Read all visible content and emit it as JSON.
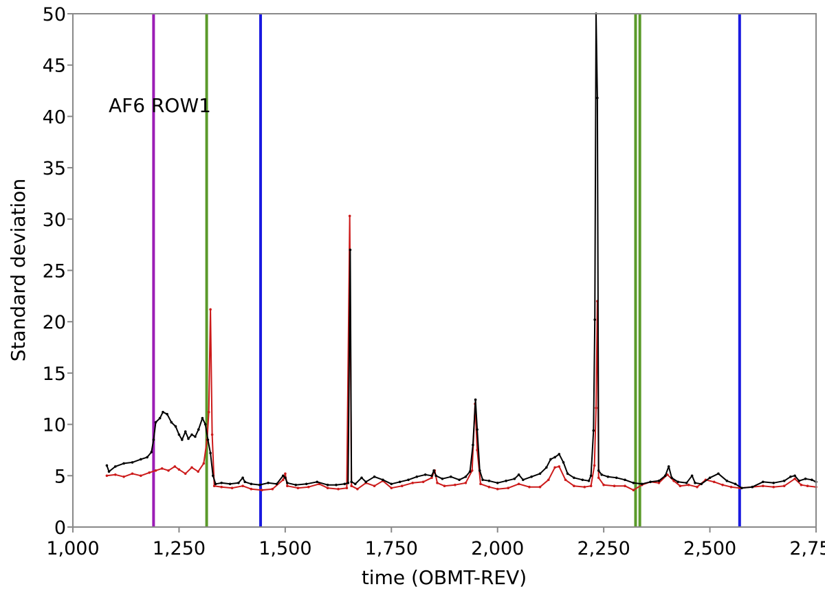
{
  "chart_data": {
    "type": "line",
    "title": "",
    "annotation": "AF6 ROW1",
    "xlabel": "time (OBMT-REV)",
    "ylabel": "Standard deviation",
    "xlim": [
      1000,
      2750
    ],
    "ylim": [
      0,
      50
    ],
    "grid": false,
    "x_ticks": [
      "1,000",
      "1,250",
      "1,500",
      "1,750",
      "2,000",
      "2,250",
      "2,500",
      "2,750"
    ],
    "y_ticks": [
      "0",
      "5",
      "10",
      "15",
      "20",
      "25",
      "30",
      "35",
      "40",
      "45",
      "50"
    ],
    "vertical_markers": [
      {
        "x": 1190,
        "color": "#9b1db5"
      },
      {
        "x": 1315,
        "color": "#5a9a2a"
      },
      {
        "x": 1442,
        "color": "#1a1ae0"
      },
      {
        "x": 2325,
        "color": "#5a9a2a"
      },
      {
        "x": 2335,
        "color": "#5a9a2a"
      },
      {
        "x": 2570,
        "color": "#1a1ae0"
      }
    ],
    "series": [
      {
        "color": "#000000",
        "points": [
          [
            1080,
            6.0
          ],
          [
            1085,
            5.4
          ],
          [
            1100,
            5.9
          ],
          [
            1120,
            6.2
          ],
          [
            1140,
            6.3
          ],
          [
            1160,
            6.6
          ],
          [
            1175,
            6.8
          ],
          [
            1185,
            7.3
          ],
          [
            1190,
            8.5
          ],
          [
            1195,
            10.2
          ],
          [
            1205,
            10.6
          ],
          [
            1212,
            11.2
          ],
          [
            1222,
            11.0
          ],
          [
            1232,
            10.2
          ],
          [
            1242,
            9.8
          ],
          [
            1250,
            9.0
          ],
          [
            1257,
            8.5
          ],
          [
            1265,
            9.3
          ],
          [
            1272,
            8.6
          ],
          [
            1280,
            9.0
          ],
          [
            1288,
            8.8
          ],
          [
            1296,
            9.5
          ],
          [
            1305,
            10.6
          ],
          [
            1312,
            10.0
          ],
          [
            1318,
            8.5
          ],
          [
            1324,
            7.2
          ],
          [
            1330,
            5.0
          ],
          [
            1336,
            4.2
          ],
          [
            1350,
            4.3
          ],
          [
            1370,
            4.2
          ],
          [
            1390,
            4.3
          ],
          [
            1400,
            4.8
          ],
          [
            1405,
            4.4
          ],
          [
            1420,
            4.2
          ],
          [
            1440,
            4.1
          ],
          [
            1460,
            4.3
          ],
          [
            1480,
            4.2
          ],
          [
            1495,
            5.0
          ],
          [
            1500,
            4.8
          ],
          [
            1505,
            4.3
          ],
          [
            1525,
            4.1
          ],
          [
            1550,
            4.2
          ],
          [
            1575,
            4.4
          ],
          [
            1600,
            4.1
          ],
          [
            1620,
            4.1
          ],
          [
            1640,
            4.2
          ],
          [
            1648,
            4.3
          ],
          [
            1653,
            27.0
          ],
          [
            1656,
            4.4
          ],
          [
            1665,
            4.2
          ],
          [
            1680,
            4.8
          ],
          [
            1690,
            4.4
          ],
          [
            1710,
            4.9
          ],
          [
            1730,
            4.6
          ],
          [
            1750,
            4.2
          ],
          [
            1770,
            4.4
          ],
          [
            1790,
            4.6
          ],
          [
            1810,
            4.9
          ],
          [
            1830,
            5.1
          ],
          [
            1845,
            5.0
          ],
          [
            1850,
            5.5
          ],
          [
            1855,
            5.0
          ],
          [
            1870,
            4.7
          ],
          [
            1890,
            4.9
          ],
          [
            1910,
            4.6
          ],
          [
            1925,
            4.9
          ],
          [
            1935,
            5.4
          ],
          [
            1942,
            8.0
          ],
          [
            1948,
            12.4
          ],
          [
            1952,
            9.5
          ],
          [
            1958,
            5.5
          ],
          [
            1965,
            4.6
          ],
          [
            1980,
            4.5
          ],
          [
            2000,
            4.3
          ],
          [
            2020,
            4.5
          ],
          [
            2040,
            4.7
          ],
          [
            2050,
            5.1
          ],
          [
            2060,
            4.6
          ],
          [
            2080,
            4.9
          ],
          [
            2100,
            5.2
          ],
          [
            2115,
            5.8
          ],
          [
            2125,
            6.6
          ],
          [
            2135,
            6.8
          ],
          [
            2145,
            7.1
          ],
          [
            2155,
            6.3
          ],
          [
            2165,
            5.2
          ],
          [
            2180,
            4.8
          ],
          [
            2200,
            4.6
          ],
          [
            2215,
            4.5
          ],
          [
            2220,
            5.0
          ],
          [
            2226,
            9.4
          ],
          [
            2229,
            20.2
          ],
          [
            2232,
            50.0
          ],
          [
            2235,
            41.8
          ],
          [
            2238,
            5.5
          ],
          [
            2245,
            5.1
          ],
          [
            2260,
            4.9
          ],
          [
            2280,
            4.8
          ],
          [
            2300,
            4.6
          ],
          [
            2320,
            4.3
          ],
          [
            2340,
            4.2
          ],
          [
            2360,
            4.4
          ],
          [
            2380,
            4.5
          ],
          [
            2395,
            5.0
          ],
          [
            2403,
            5.9
          ],
          [
            2410,
            4.8
          ],
          [
            2425,
            4.4
          ],
          [
            2445,
            4.3
          ],
          [
            2458,
            5.0
          ],
          [
            2465,
            4.3
          ],
          [
            2480,
            4.2
          ],
          [
            2500,
            4.8
          ],
          [
            2520,
            5.2
          ],
          [
            2540,
            4.5
          ],
          [
            2560,
            4.2
          ],
          [
            2575,
            3.8
          ],
          [
            2600,
            3.9
          ],
          [
            2625,
            4.4
          ],
          [
            2650,
            4.3
          ],
          [
            2675,
            4.5
          ],
          [
            2690,
            4.9
          ],
          [
            2700,
            5.0
          ],
          [
            2710,
            4.5
          ],
          [
            2725,
            4.7
          ],
          [
            2740,
            4.6
          ],
          [
            2750,
            4.4
          ]
        ]
      },
      {
        "color": "#cc1a1a",
        "points": [
          [
            1080,
            5.0
          ],
          [
            1100,
            5.1
          ],
          [
            1120,
            4.9
          ],
          [
            1140,
            5.2
          ],
          [
            1160,
            5.0
          ],
          [
            1180,
            5.3
          ],
          [
            1195,
            5.5
          ],
          [
            1210,
            5.7
          ],
          [
            1225,
            5.5
          ],
          [
            1240,
            5.9
          ],
          [
            1250,
            5.6
          ],
          [
            1265,
            5.2
          ],
          [
            1280,
            5.8
          ],
          [
            1295,
            5.4
          ],
          [
            1308,
            6.2
          ],
          [
            1316,
            8.5
          ],
          [
            1320,
            11.2
          ],
          [
            1324,
            21.2
          ],
          [
            1328,
            9.0
          ],
          [
            1333,
            4.0
          ],
          [
            1350,
            3.9
          ],
          [
            1375,
            3.8
          ],
          [
            1400,
            4.0
          ],
          [
            1420,
            3.7
          ],
          [
            1445,
            3.6
          ],
          [
            1470,
            3.7
          ],
          [
            1495,
            4.6
          ],
          [
            1500,
            5.2
          ],
          [
            1505,
            4.0
          ],
          [
            1530,
            3.8
          ],
          [
            1555,
            3.9
          ],
          [
            1580,
            4.2
          ],
          [
            1600,
            3.8
          ],
          [
            1625,
            3.7
          ],
          [
            1645,
            3.8
          ],
          [
            1652,
            30.3
          ],
          [
            1656,
            4.0
          ],
          [
            1670,
            3.7
          ],
          [
            1690,
            4.3
          ],
          [
            1710,
            4.0
          ],
          [
            1730,
            4.5
          ],
          [
            1750,
            3.8
          ],
          [
            1775,
            4.0
          ],
          [
            1800,
            4.3
          ],
          [
            1825,
            4.4
          ],
          [
            1845,
            4.8
          ],
          [
            1852,
            5.5
          ],
          [
            1858,
            4.3
          ],
          [
            1875,
            4.0
          ],
          [
            1900,
            4.1
          ],
          [
            1925,
            4.3
          ],
          [
            1940,
            5.5
          ],
          [
            1947,
            12.0
          ],
          [
            1952,
            7.5
          ],
          [
            1960,
            4.2
          ],
          [
            1980,
            3.9
          ],
          [
            2000,
            3.7
          ],
          [
            2025,
            3.8
          ],
          [
            2050,
            4.2
          ],
          [
            2075,
            3.9
          ],
          [
            2100,
            3.9
          ],
          [
            2120,
            4.6
          ],
          [
            2135,
            5.8
          ],
          [
            2145,
            5.9
          ],
          [
            2160,
            4.6
          ],
          [
            2180,
            4.0
          ],
          [
            2205,
            3.9
          ],
          [
            2220,
            4.0
          ],
          [
            2228,
            6.0
          ],
          [
            2232,
            11.6
          ],
          [
            2235,
            22.0
          ],
          [
            2238,
            4.8
          ],
          [
            2250,
            4.1
          ],
          [
            2275,
            4.0
          ],
          [
            2300,
            4.0
          ],
          [
            2320,
            3.6
          ],
          [
            2340,
            4.1
          ],
          [
            2360,
            4.4
          ],
          [
            2380,
            4.3
          ],
          [
            2400,
            5.1
          ],
          [
            2415,
            4.5
          ],
          [
            2430,
            4.0
          ],
          [
            2450,
            4.1
          ],
          [
            2470,
            3.9
          ],
          [
            2490,
            4.6
          ],
          [
            2510,
            4.4
          ],
          [
            2530,
            4.1
          ],
          [
            2550,
            3.9
          ],
          [
            2570,
            3.8
          ],
          [
            2600,
            3.9
          ],
          [
            2625,
            4.0
          ],
          [
            2650,
            3.9
          ],
          [
            2675,
            4.0
          ],
          [
            2700,
            4.7
          ],
          [
            2715,
            4.1
          ],
          [
            2730,
            4.0
          ],
          [
            2750,
            3.9
          ]
        ]
      }
    ]
  }
}
